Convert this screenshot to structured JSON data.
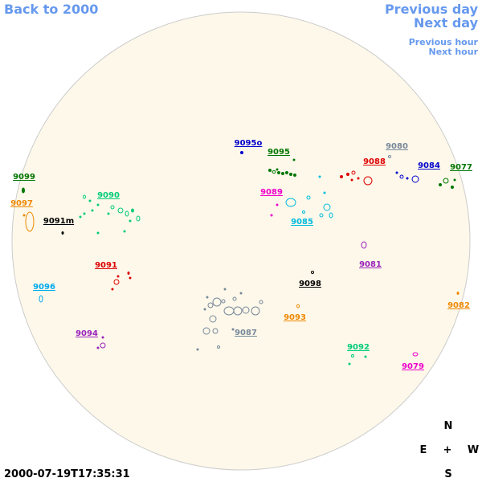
{
  "nav": {
    "back": "Back to 2000",
    "previous_day": "Previous day",
    "next_day": "Next day",
    "previous_hour": "Previous hour",
    "next_hour": "Next hour"
  },
  "timestamp": "2000-07-19T17:35:31",
  "compass": {
    "n": "N",
    "e": "E",
    "center": "+",
    "w": "W",
    "s": "S"
  },
  "regions": [
    {
      "label": "9099",
      "color": "#007700"
    },
    {
      "label": "9097",
      "color": "#ee8800"
    },
    {
      "label": "9091m",
      "color": "#000000"
    },
    {
      "label": "9090",
      "color": "#00cc77"
    },
    {
      "label": "9091",
      "color": "#dd0000"
    },
    {
      "label": "9096",
      "color": "#00aaee"
    },
    {
      "label": "9094",
      "color": "#9922bb"
    },
    {
      "label": "9095o",
      "color": "#0000cc"
    },
    {
      "label": "9095",
      "color": "#007700"
    },
    {
      "label": "9089",
      "color": "#ee00cc"
    },
    {
      "label": "9085",
      "color": "#00bbdd"
    },
    {
      "label": "9080",
      "color": "#778899"
    },
    {
      "label": "9088",
      "color": "#dd0000"
    },
    {
      "label": "9084",
      "color": "#0000cc"
    },
    {
      "label": "9077",
      "color": "#007700"
    },
    {
      "label": "9081",
      "color": "#9922bb"
    },
    {
      "label": "9098",
      "color": "#000000"
    },
    {
      "label": "9093",
      "color": "#ee8800"
    },
    {
      "label": "9087",
      "color": "#778899"
    },
    {
      "label": "9082",
      "color": "#ee8800"
    },
    {
      "label": "9092",
      "color": "#00cc77"
    },
    {
      "label": "9079",
      "color": "#ee00cc"
    }
  ]
}
